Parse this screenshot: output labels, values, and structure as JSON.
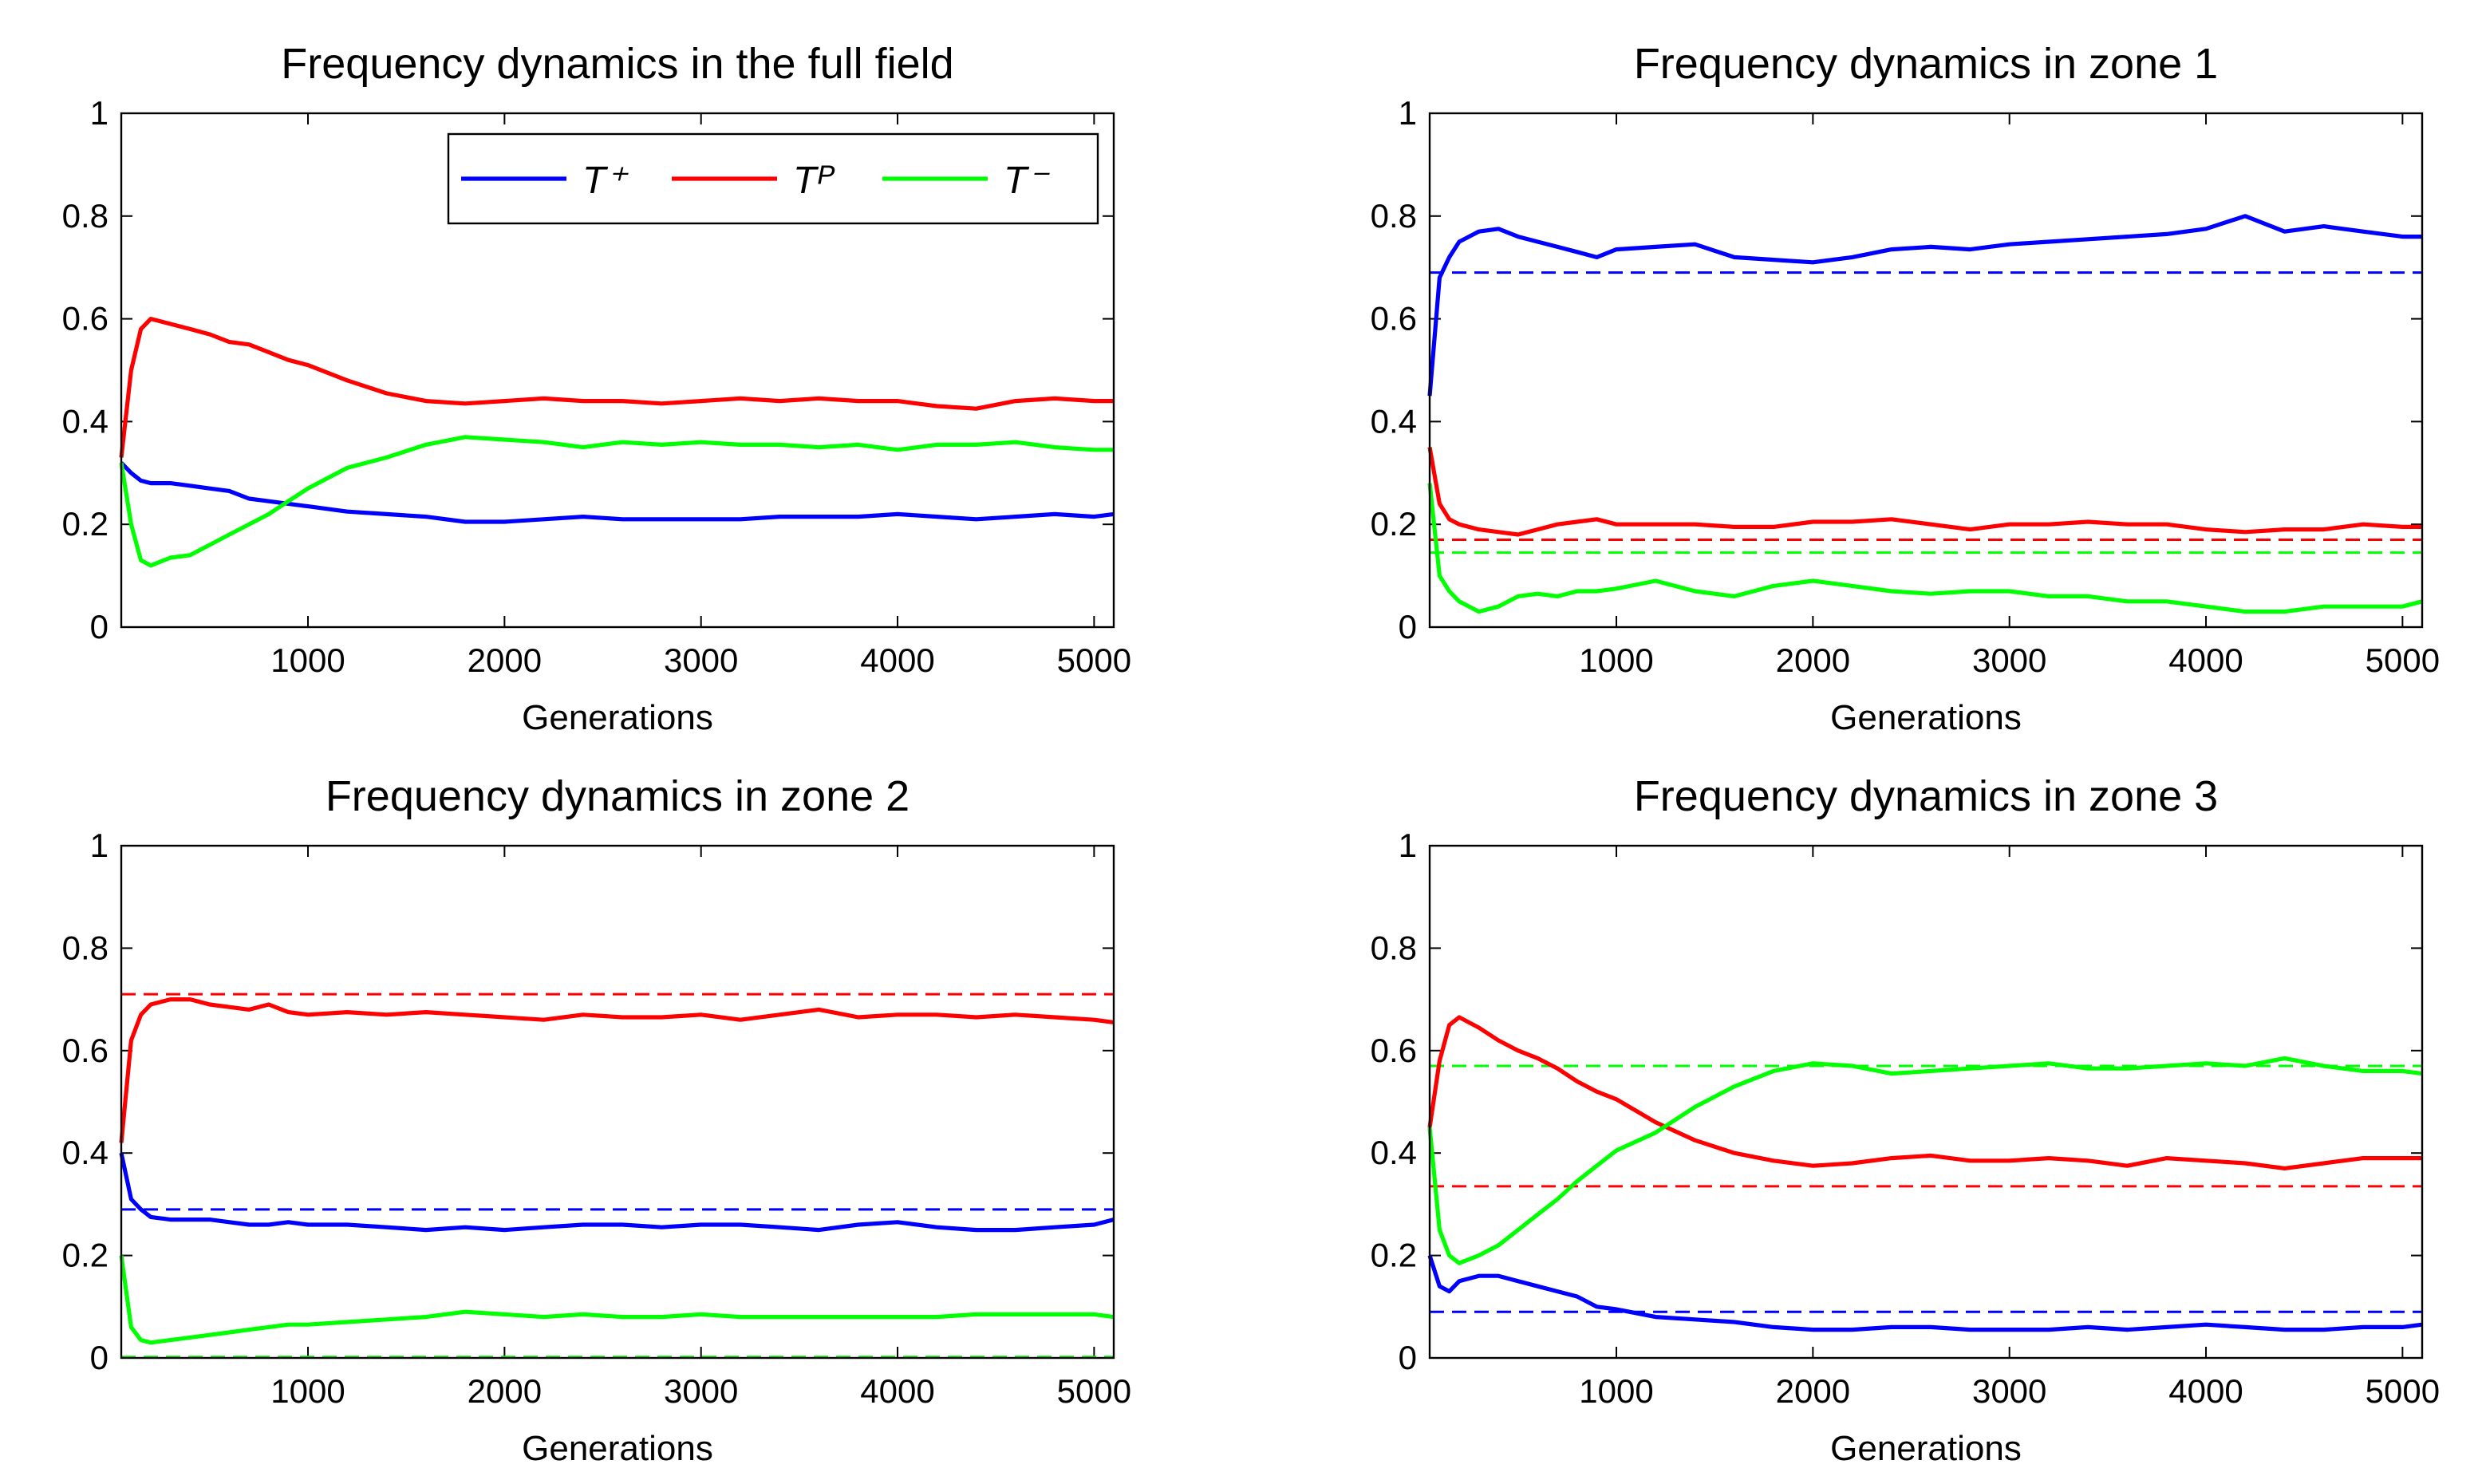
{
  "chart_data": [
    {
      "type": "line",
      "title": "Frequency dynamics in the full field",
      "xlabel": "Generations",
      "xlim": [
        50,
        5100
      ],
      "xticks": [
        1000,
        2000,
        3000,
        4000,
        5000
      ],
      "ylim": [
        0,
        1
      ],
      "yticks": [
        0,
        0.2,
        0.4,
        0.6,
        0.8,
        1
      ],
      "legend": "upper right",
      "x": [
        50,
        100,
        150,
        200,
        300,
        400,
        500,
        600,
        700,
        800,
        900,
        1000,
        1200,
        1400,
        1600,
        1800,
        2000,
        2200,
        2400,
        2600,
        2800,
        3000,
        3200,
        3400,
        3600,
        3800,
        4000,
        4200,
        4400,
        4600,
        4800,
        5000,
        5100
      ],
      "series": [
        {
          "name": "T⁺",
          "color": "#0000ff",
          "values": [
            0.32,
            0.3,
            0.285,
            0.28,
            0.28,
            0.275,
            0.27,
            0.265,
            0.25,
            0.245,
            0.24,
            0.235,
            0.225,
            0.22,
            0.215,
            0.205,
            0.205,
            0.21,
            0.215,
            0.21,
            0.21,
            0.21,
            0.21,
            0.215,
            0.215,
            0.215,
            0.22,
            0.215,
            0.21,
            0.215,
            0.22,
            0.215,
            0.22
          ]
        },
        {
          "name": "Tᴾ",
          "color": "#ff0000",
          "values": [
            0.33,
            0.5,
            0.58,
            0.6,
            0.59,
            0.58,
            0.57,
            0.555,
            0.55,
            0.535,
            0.52,
            0.51,
            0.48,
            0.455,
            0.44,
            0.435,
            0.44,
            0.445,
            0.44,
            0.44,
            0.435,
            0.44,
            0.445,
            0.44,
            0.445,
            0.44,
            0.44,
            0.43,
            0.425,
            0.44,
            0.445,
            0.44,
            0.44
          ]
        },
        {
          "name": "T⁻",
          "color": "#00ff00",
          "values": [
            0.32,
            0.2,
            0.13,
            0.12,
            0.135,
            0.14,
            0.16,
            0.18,
            0.2,
            0.22,
            0.245,
            0.27,
            0.31,
            0.33,
            0.355,
            0.37,
            0.365,
            0.36,
            0.35,
            0.36,
            0.355,
            0.36,
            0.355,
            0.355,
            0.35,
            0.355,
            0.345,
            0.355,
            0.355,
            0.36,
            0.35,
            0.345,
            0.345
          ]
        }
      ]
    },
    {
      "type": "line",
      "title": "Frequency dynamics in zone 1",
      "xlabel": "Generations",
      "xlim": [
        50,
        5100
      ],
      "xticks": [
        1000,
        2000,
        3000,
        4000,
        5000
      ],
      "ylim": [
        0,
        1
      ],
      "yticks": [
        0,
        0.2,
        0.4,
        0.6,
        0.8,
        1
      ],
      "x": [
        50,
        100,
        150,
        200,
        300,
        400,
        500,
        600,
        700,
        800,
        900,
        1000,
        1200,
        1400,
        1600,
        1800,
        2000,
        2200,
        2400,
        2600,
        2800,
        3000,
        3200,
        3400,
        3600,
        3800,
        4000,
        4200,
        4400,
        4600,
        4800,
        5000,
        5100
      ],
      "series": [
        {
          "color": "#0000ff",
          "values": [
            0.45,
            0.68,
            0.72,
            0.75,
            0.77,
            0.775,
            0.76,
            0.75,
            0.74,
            0.73,
            0.72,
            0.735,
            0.74,
            0.745,
            0.72,
            0.715,
            0.71,
            0.72,
            0.735,
            0.74,
            0.735,
            0.745,
            0.75,
            0.755,
            0.76,
            0.765,
            0.775,
            0.8,
            0.77,
            0.78,
            0.77,
            0.76,
            0.76
          ]
        },
        {
          "color": "#ff0000",
          "values": [
            0.35,
            0.24,
            0.21,
            0.2,
            0.19,
            0.185,
            0.18,
            0.19,
            0.2,
            0.205,
            0.21,
            0.2,
            0.2,
            0.2,
            0.195,
            0.195,
            0.205,
            0.205,
            0.21,
            0.2,
            0.19,
            0.2,
            0.2,
            0.205,
            0.2,
            0.2,
            0.19,
            0.185,
            0.19,
            0.19,
            0.2,
            0.195,
            0.195
          ]
        },
        {
          "color": "#00ff00",
          "values": [
            0.28,
            0.1,
            0.07,
            0.05,
            0.03,
            0.04,
            0.06,
            0.065,
            0.06,
            0.07,
            0.07,
            0.075,
            0.09,
            0.07,
            0.06,
            0.08,
            0.09,
            0.08,
            0.07,
            0.065,
            0.07,
            0.07,
            0.06,
            0.06,
            0.05,
            0.05,
            0.04,
            0.03,
            0.03,
            0.04,
            0.04,
            0.04,
            0.05
          ]
        }
      ],
      "reference_lines": [
        {
          "color": "#0000ff",
          "value": 0.69
        },
        {
          "color": "#ff0000",
          "value": 0.17
        },
        {
          "color": "#00ff00",
          "value": 0.145
        }
      ]
    },
    {
      "type": "line",
      "title": "Frequency dynamics in zone 2",
      "xlabel": "Generations",
      "xlim": [
        50,
        5100
      ],
      "xticks": [
        1000,
        2000,
        3000,
        4000,
        5000
      ],
      "ylim": [
        0,
        1
      ],
      "yticks": [
        0,
        0.2,
        0.4,
        0.6,
        0.8,
        1
      ],
      "x": [
        50,
        100,
        150,
        200,
        300,
        400,
        500,
        600,
        700,
        800,
        900,
        1000,
        1200,
        1400,
        1600,
        1800,
        2000,
        2200,
        2400,
        2600,
        2800,
        3000,
        3200,
        3400,
        3600,
        3800,
        4000,
        4200,
        4400,
        4600,
        4800,
        5000,
        5100
      ],
      "series": [
        {
          "color": "#0000ff",
          "values": [
            0.4,
            0.31,
            0.29,
            0.275,
            0.27,
            0.27,
            0.27,
            0.265,
            0.26,
            0.26,
            0.265,
            0.26,
            0.26,
            0.255,
            0.25,
            0.255,
            0.25,
            0.255,
            0.26,
            0.26,
            0.255,
            0.26,
            0.26,
            0.255,
            0.25,
            0.26,
            0.265,
            0.255,
            0.25,
            0.25,
            0.255,
            0.26,
            0.27
          ]
        },
        {
          "color": "#ff0000",
          "values": [
            0.42,
            0.62,
            0.67,
            0.69,
            0.7,
            0.7,
            0.69,
            0.685,
            0.68,
            0.69,
            0.675,
            0.67,
            0.675,
            0.67,
            0.675,
            0.67,
            0.665,
            0.66,
            0.67,
            0.665,
            0.665,
            0.67,
            0.66,
            0.67,
            0.68,
            0.665,
            0.67,
            0.67,
            0.665,
            0.67,
            0.665,
            0.66,
            0.655
          ]
        },
        {
          "color": "#00ff00",
          "values": [
            0.2,
            0.06,
            0.035,
            0.03,
            0.035,
            0.04,
            0.045,
            0.05,
            0.055,
            0.06,
            0.065,
            0.065,
            0.07,
            0.075,
            0.08,
            0.09,
            0.085,
            0.08,
            0.085,
            0.08,
            0.08,
            0.085,
            0.08,
            0.08,
            0.08,
            0.08,
            0.08,
            0.08,
            0.085,
            0.085,
            0.085,
            0.085,
            0.08
          ]
        }
      ],
      "reference_lines": [
        {
          "color": "#0000ff",
          "value": 0.29
        },
        {
          "color": "#ff0000",
          "value": 0.71
        },
        {
          "color": "#00ff00",
          "value": 0.002
        }
      ]
    },
    {
      "type": "line",
      "title": "Frequency dynamics in zone 3",
      "xlabel": "Generations",
      "xlim": [
        50,
        5100
      ],
      "xticks": [
        1000,
        2000,
        3000,
        4000,
        5000
      ],
      "ylim": [
        0,
        1
      ],
      "yticks": [
        0,
        0.2,
        0.4,
        0.6,
        0.8,
        1
      ],
      "x": [
        50,
        100,
        150,
        200,
        300,
        400,
        500,
        600,
        700,
        800,
        900,
        1000,
        1200,
        1400,
        1600,
        1800,
        2000,
        2200,
        2400,
        2600,
        2800,
        3000,
        3200,
        3400,
        3600,
        3800,
        4000,
        4200,
        4400,
        4600,
        4800,
        5000,
        5100
      ],
      "series": [
        {
          "color": "#0000ff",
          "values": [
            0.2,
            0.14,
            0.13,
            0.15,
            0.16,
            0.16,
            0.15,
            0.14,
            0.13,
            0.12,
            0.1,
            0.095,
            0.08,
            0.075,
            0.07,
            0.06,
            0.055,
            0.055,
            0.06,
            0.06,
            0.055,
            0.055,
            0.055,
            0.06,
            0.055,
            0.06,
            0.065,
            0.06,
            0.055,
            0.055,
            0.06,
            0.06,
            0.065
          ]
        },
        {
          "color": "#ff0000",
          "values": [
            0.45,
            0.58,
            0.65,
            0.665,
            0.645,
            0.62,
            0.6,
            0.585,
            0.565,
            0.54,
            0.52,
            0.505,
            0.46,
            0.425,
            0.4,
            0.385,
            0.375,
            0.38,
            0.39,
            0.395,
            0.385,
            0.385,
            0.39,
            0.385,
            0.375,
            0.39,
            0.385,
            0.38,
            0.37,
            0.38,
            0.39,
            0.39,
            0.39
          ]
        },
        {
          "color": "#00ff00",
          "values": [
            0.45,
            0.25,
            0.2,
            0.185,
            0.2,
            0.22,
            0.25,
            0.28,
            0.31,
            0.345,
            0.375,
            0.405,
            0.44,
            0.49,
            0.53,
            0.56,
            0.575,
            0.57,
            0.555,
            0.56,
            0.565,
            0.57,
            0.575,
            0.565,
            0.565,
            0.57,
            0.575,
            0.57,
            0.585,
            0.57,
            0.56,
            0.56,
            0.555
          ]
        }
      ],
      "reference_lines": [
        {
          "color": "#0000ff",
          "value": 0.09
        },
        {
          "color": "#ff0000",
          "value": 0.335
        },
        {
          "color": "#00ff00",
          "value": 0.57
        }
      ]
    }
  ]
}
